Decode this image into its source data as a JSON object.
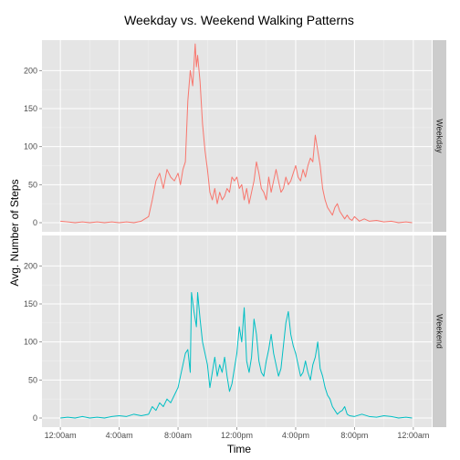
{
  "chart_data": {
    "type": "line",
    "title": "Weekday vs. Weekend Walking Patterns",
    "xlabel": "Time",
    "ylabel": "Avg. Number of Steps",
    "ylim": [
      -12,
      240
    ],
    "xlim_minutes": [
      -75,
      1515
    ],
    "y_ticks": [
      0,
      50,
      100,
      150,
      200
    ],
    "x_ticks": [
      "12:00am",
      "4:00am",
      "8:00am",
      "12:00pm",
      "4:00pm",
      "8:00pm",
      "12:00am"
    ],
    "grid": true,
    "colors": {
      "panel_bg": "#e5e5e5",
      "grid_major": "#ffffff",
      "grid_minor": "#f2f2f2",
      "strip_bg": "#cccccc"
    },
    "panels": [
      {
        "strip_label": "Weekday",
        "color": "#f8766d",
        "points": [
          [
            0,
            2
          ],
          [
            30,
            1
          ],
          [
            60,
            0
          ],
          [
            90,
            1
          ],
          [
            120,
            0
          ],
          [
            150,
            1
          ],
          [
            180,
            0
          ],
          [
            210,
            1
          ],
          [
            240,
            0
          ],
          [
            270,
            1
          ],
          [
            300,
            0
          ],
          [
            330,
            2
          ],
          [
            360,
            8
          ],
          [
            375,
            30
          ],
          [
            390,
            55
          ],
          [
            405,
            65
          ],
          [
            420,
            45
          ],
          [
            435,
            70
          ],
          [
            450,
            60
          ],
          [
            465,
            55
          ],
          [
            480,
            65
          ],
          [
            490,
            50
          ],
          [
            500,
            70
          ],
          [
            510,
            80
          ],
          [
            520,
            160
          ],
          [
            530,
            200
          ],
          [
            540,
            180
          ],
          [
            550,
            235
          ],
          [
            555,
            205
          ],
          [
            560,
            220
          ],
          [
            570,
            185
          ],
          [
            580,
            130
          ],
          [
            590,
            95
          ],
          [
            600,
            70
          ],
          [
            610,
            40
          ],
          [
            620,
            30
          ],
          [
            630,
            45
          ],
          [
            640,
            25
          ],
          [
            650,
            40
          ],
          [
            660,
            30
          ],
          [
            670,
            35
          ],
          [
            680,
            45
          ],
          [
            690,
            40
          ],
          [
            700,
            60
          ],
          [
            710,
            55
          ],
          [
            720,
            60
          ],
          [
            730,
            45
          ],
          [
            740,
            50
          ],
          [
            750,
            30
          ],
          [
            760,
            45
          ],
          [
            770,
            25
          ],
          [
            780,
            40
          ],
          [
            790,
            55
          ],
          [
            800,
            80
          ],
          [
            810,
            65
          ],
          [
            820,
            45
          ],
          [
            830,
            40
          ],
          [
            840,
            30
          ],
          [
            850,
            60
          ],
          [
            860,
            40
          ],
          [
            870,
            55
          ],
          [
            880,
            70
          ],
          [
            890,
            55
          ],
          [
            900,
            40
          ],
          [
            910,
            45
          ],
          [
            920,
            60
          ],
          [
            930,
            50
          ],
          [
            940,
            55
          ],
          [
            950,
            65
          ],
          [
            960,
            75
          ],
          [
            970,
            60
          ],
          [
            980,
            55
          ],
          [
            990,
            70
          ],
          [
            1000,
            60
          ],
          [
            1010,
            75
          ],
          [
            1020,
            85
          ],
          [
            1030,
            80
          ],
          [
            1040,
            115
          ],
          [
            1050,
            95
          ],
          [
            1060,
            75
          ],
          [
            1070,
            45
          ],
          [
            1080,
            30
          ],
          [
            1090,
            20
          ],
          [
            1100,
            15
          ],
          [
            1110,
            10
          ],
          [
            1120,
            20
          ],
          [
            1130,
            25
          ],
          [
            1140,
            15
          ],
          [
            1150,
            10
          ],
          [
            1160,
            5
          ],
          [
            1170,
            10
          ],
          [
            1180,
            5
          ],
          [
            1190,
            3
          ],
          [
            1200,
            8
          ],
          [
            1220,
            2
          ],
          [
            1240,
            5
          ],
          [
            1260,
            2
          ],
          [
            1290,
            3
          ],
          [
            1320,
            1
          ],
          [
            1350,
            2
          ],
          [
            1380,
            0
          ],
          [
            1410,
            1
          ],
          [
            1435,
            0
          ]
        ]
      },
      {
        "strip_label": "Weekend",
        "color": "#00bfc4",
        "points": [
          [
            0,
            0
          ],
          [
            30,
            1
          ],
          [
            60,
            0
          ],
          [
            90,
            2
          ],
          [
            120,
            0
          ],
          [
            150,
            1
          ],
          [
            180,
            0
          ],
          [
            210,
            2
          ],
          [
            240,
            3
          ],
          [
            270,
            2
          ],
          [
            300,
            5
          ],
          [
            330,
            3
          ],
          [
            360,
            5
          ],
          [
            375,
            15
          ],
          [
            390,
            10
          ],
          [
            405,
            20
          ],
          [
            420,
            15
          ],
          [
            435,
            25
          ],
          [
            450,
            20
          ],
          [
            465,
            30
          ],
          [
            480,
            40
          ],
          [
            490,
            55
          ],
          [
            500,
            70
          ],
          [
            510,
            85
          ],
          [
            520,
            90
          ],
          [
            530,
            60
          ],
          [
            535,
            165
          ],
          [
            545,
            140
          ],
          [
            555,
            120
          ],
          [
            560,
            165
          ],
          [
            570,
            130
          ],
          [
            580,
            100
          ],
          [
            590,
            85
          ],
          [
            600,
            70
          ],
          [
            610,
            40
          ],
          [
            620,
            60
          ],
          [
            630,
            80
          ],
          [
            640,
            55
          ],
          [
            650,
            70
          ],
          [
            660,
            60
          ],
          [
            670,
            80
          ],
          [
            680,
            55
          ],
          [
            690,
            35
          ],
          [
            700,
            45
          ],
          [
            710,
            65
          ],
          [
            720,
            85
          ],
          [
            730,
            120
          ],
          [
            740,
            100
          ],
          [
            750,
            145
          ],
          [
            760,
            75
          ],
          [
            770,
            60
          ],
          [
            780,
            80
          ],
          [
            790,
            130
          ],
          [
            800,
            110
          ],
          [
            810,
            75
          ],
          [
            820,
            60
          ],
          [
            830,
            55
          ],
          [
            840,
            75
          ],
          [
            850,
            90
          ],
          [
            860,
            110
          ],
          [
            870,
            85
          ],
          [
            880,
            70
          ],
          [
            890,
            55
          ],
          [
            900,
            65
          ],
          [
            910,
            95
          ],
          [
            920,
            125
          ],
          [
            930,
            140
          ],
          [
            940,
            110
          ],
          [
            950,
            95
          ],
          [
            960,
            85
          ],
          [
            970,
            70
          ],
          [
            980,
            55
          ],
          [
            990,
            60
          ],
          [
            1000,
            75
          ],
          [
            1010,
            60
          ],
          [
            1020,
            50
          ],
          [
            1030,
            70
          ],
          [
            1040,
            80
          ],
          [
            1050,
            100
          ],
          [
            1060,
            65
          ],
          [
            1070,
            55
          ],
          [
            1080,
            40
          ],
          [
            1090,
            30
          ],
          [
            1100,
            25
          ],
          [
            1110,
            15
          ],
          [
            1120,
            10
          ],
          [
            1130,
            5
          ],
          [
            1140,
            8
          ],
          [
            1150,
            10
          ],
          [
            1160,
            15
          ],
          [
            1170,
            5
          ],
          [
            1180,
            3
          ],
          [
            1200,
            2
          ],
          [
            1230,
            5
          ],
          [
            1260,
            2
          ],
          [
            1290,
            1
          ],
          [
            1320,
            3
          ],
          [
            1350,
            2
          ],
          [
            1380,
            0
          ],
          [
            1410,
            1
          ],
          [
            1435,
            0
          ]
        ]
      }
    ]
  }
}
